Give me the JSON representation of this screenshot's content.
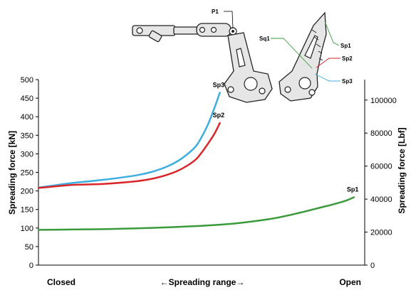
{
  "chart_data": {
    "type": "line",
    "title": "",
    "xlabel": "←Spreading range→",
    "x_end_labels": {
      "left": "Closed",
      "right": "Open"
    },
    "ylabel_left": "Spreading force [kN]",
    "ylabel_right": "Spreading force [Lbf]",
    "ylim_left": [
      0,
      500
    ],
    "yticks_left": [
      "0",
      "50",
      "100",
      "150",
      "200",
      "250",
      "300",
      "350",
      "400",
      "450",
      "500"
    ],
    "ylim_right_lbf": [
      0,
      112404
    ],
    "yticks_right": [
      "0",
      "20000",
      "40000",
      "60000",
      "80000",
      "100000"
    ],
    "yticks_right_values": [
      0,
      20000,
      40000,
      60000,
      80000,
      100000
    ],
    "xlim": [
      0,
      1
    ],
    "grid": false,
    "series": [
      {
        "name": "Sp3",
        "color": "#3daee0",
        "x": [
          0.0,
          0.05,
          0.1,
          0.2,
          0.3,
          0.35,
          0.4,
          0.44,
          0.48,
          0.5,
          0.52,
          0.54,
          0.556
        ],
        "y": [
          209,
          215,
          221,
          230,
          242,
          252,
          268,
          288,
          318,
          345,
          380,
          425,
          465
        ]
      },
      {
        "name": "Sp2",
        "color": "#d9262b",
        "x": [
          0.0,
          0.05,
          0.1,
          0.2,
          0.3,
          0.35,
          0.4,
          0.44,
          0.48,
          0.5,
          0.52,
          0.54,
          0.556
        ],
        "y": [
          208,
          212,
          216,
          219,
          226,
          233,
          245,
          260,
          283,
          303,
          328,
          355,
          383
        ]
      },
      {
        "name": "Sp1",
        "color": "#3a9a3a",
        "x": [
          0.0,
          0.1,
          0.2,
          0.3,
          0.4,
          0.5,
          0.6,
          0.7,
          0.75,
          0.8,
          0.85,
          0.9,
          0.94,
          0.967
        ],
        "y": [
          95,
          96,
          97,
          99,
          102,
          106,
          112,
          123,
          131,
          141,
          152,
          163,
          173,
          183
        ]
      }
    ],
    "mechanism_labels": [
      "P1",
      "Sq1",
      "Sp1",
      "Sp2",
      "Sp3"
    ]
  }
}
